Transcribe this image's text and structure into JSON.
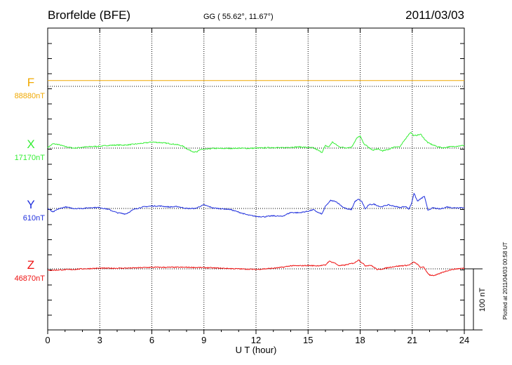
{
  "header": {
    "station": "Brorfelde (BFE)",
    "coords": "GG ( 55.62°,  11.67°)",
    "date": "2011/03/03"
  },
  "scale_bar": {
    "label": "100 nT"
  },
  "plotted_note": "Plotted at 2011/04/03 00:58 UT",
  "chart_data": {
    "type": "line",
    "xlabel": "U T (hour)",
    "xlim": [
      0,
      24
    ],
    "xticks": [
      0,
      3,
      6,
      9,
      12,
      15,
      18,
      21,
      24
    ],
    "grid": "dotted vertical lines every 3 hours; dotted baseline per component",
    "scale_nT": 100,
    "series": [
      {
        "name": "F",
        "baseline_label": "88880nT",
        "color": "#f0a800",
        "x": [
          0,
          24
        ],
        "values": [
          19,
          19
        ]
      },
      {
        "name": "X",
        "baseline_label": "17170nT",
        "color": "#33ee33",
        "x": [
          0,
          0.3,
          0.6,
          1,
          1.5,
          2,
          2.5,
          3,
          3.5,
          4,
          4.5,
          5,
          5.5,
          6,
          6.5,
          7,
          7.5,
          7.8,
          8.1,
          8.4,
          8.6,
          8.8,
          9.1,
          9.5,
          10,
          10.5,
          11,
          11.5,
          12,
          12.5,
          13,
          13.5,
          14,
          14.5,
          15,
          15.3,
          15.6,
          15.8,
          16,
          16.2,
          16.4,
          16.8,
          17.2,
          17.5,
          17.8,
          18,
          18.2,
          18.5,
          18.7,
          19,
          19.3,
          19.6,
          20,
          20.3,
          20.6,
          20.9,
          21.1,
          21.3,
          21.5,
          21.7,
          21.9,
          22.2,
          22.5,
          22.8,
          23.1,
          23.5,
          24
        ],
        "values": [
          2,
          14,
          12,
          5,
          0,
          3,
          5,
          6,
          9,
          10,
          10,
          13,
          16,
          20,
          18,
          15,
          11,
          6,
          -5,
          -12,
          -13,
          -4,
          -4,
          -1,
          -1,
          -1,
          0,
          -1,
          0,
          1,
          2,
          1,
          3,
          4,
          2,
          1,
          -8,
          -14,
          8,
          4,
          20,
          4,
          1,
          3,
          32,
          40,
          15,
          2,
          -7,
          -3,
          -9,
          -5,
          5,
          4,
          30,
          52,
          40,
          43,
          45,
          30,
          18,
          10,
          4,
          1,
          4,
          6,
          9
        ]
      },
      {
        "name": "Y",
        "baseline_label": "610nT",
        "color": "#2030dd",
        "x": [
          0,
          0.3,
          0.6,
          1,
          1.5,
          2,
          2.5,
          3,
          3.5,
          4,
          4.5,
          5,
          5.5,
          6,
          6.5,
          7,
          7.5,
          8,
          8.5,
          9,
          9.5,
          10,
          10.5,
          11,
          11.5,
          12,
          12.5,
          13,
          13.5,
          14,
          14.5,
          15,
          15.3,
          15.6,
          15.8,
          16,
          16.3,
          16.6,
          17,
          17.3,
          17.5,
          17.7,
          17.9,
          18.1,
          18.3,
          18.5,
          18.8,
          19.2,
          19.6,
          20,
          20.3,
          20.6,
          20.8,
          20.95,
          21.1,
          21.3,
          21.5,
          21.7,
          21.9,
          22.2,
          22.6,
          23,
          23.4,
          23.8,
          24
        ],
        "values": [
          0,
          -12,
          -2,
          5,
          0,
          0,
          3,
          3,
          -3,
          -14,
          -18,
          -2,
          5,
          8,
          8,
          5,
          6,
          0,
          0,
          12,
          2,
          -1,
          -3,
          -12,
          -21,
          -26,
          -27,
          -24,
          -26,
          -13,
          -14,
          -9,
          -4,
          -14,
          -18,
          7,
          26,
          23,
          5,
          -3,
          -3,
          23,
          30,
          22,
          -2,
          12,
          14,
          5,
          12,
          7,
          3,
          7,
          -2,
          15,
          50,
          24,
          32,
          40,
          -5,
          2,
          -2,
          5,
          2,
          3,
          3
        ]
      },
      {
        "name": "Z",
        "baseline_label": "46870nT",
        "color": "#ee1111",
        "x": [
          0,
          0.5,
          1,
          1.5,
          2,
          3,
          4,
          5,
          6,
          7,
          8,
          9,
          10,
          11,
          12,
          12.5,
          13,
          13.5,
          14,
          14.5,
          15,
          15.5,
          16,
          16.2,
          16.5,
          16.8,
          17.1,
          17.4,
          17.7,
          17.9,
          18.1,
          18.3,
          18.6,
          18.8,
          19,
          19.3,
          19.6,
          20,
          20.4,
          20.8,
          21.1,
          21.3,
          21.5,
          21.65,
          21.8,
          22,
          22.3,
          22.6,
          22.9,
          23.3,
          23.7,
          24
        ],
        "values": [
          -5,
          -4,
          -3,
          -2,
          0,
          2,
          2,
          3,
          5,
          5,
          5,
          4,
          2,
          0,
          -2,
          0,
          2,
          5,
          10,
          10,
          11,
          10,
          12,
          25,
          20,
          10,
          12,
          16,
          20,
          30,
          20,
          10,
          12,
          5,
          -3,
          0,
          4,
          8,
          10,
          12,
          22,
          15,
          3,
          8,
          -8,
          -20,
          -22,
          -15,
          -8,
          -2,
          1,
          2
        ]
      }
    ]
  }
}
